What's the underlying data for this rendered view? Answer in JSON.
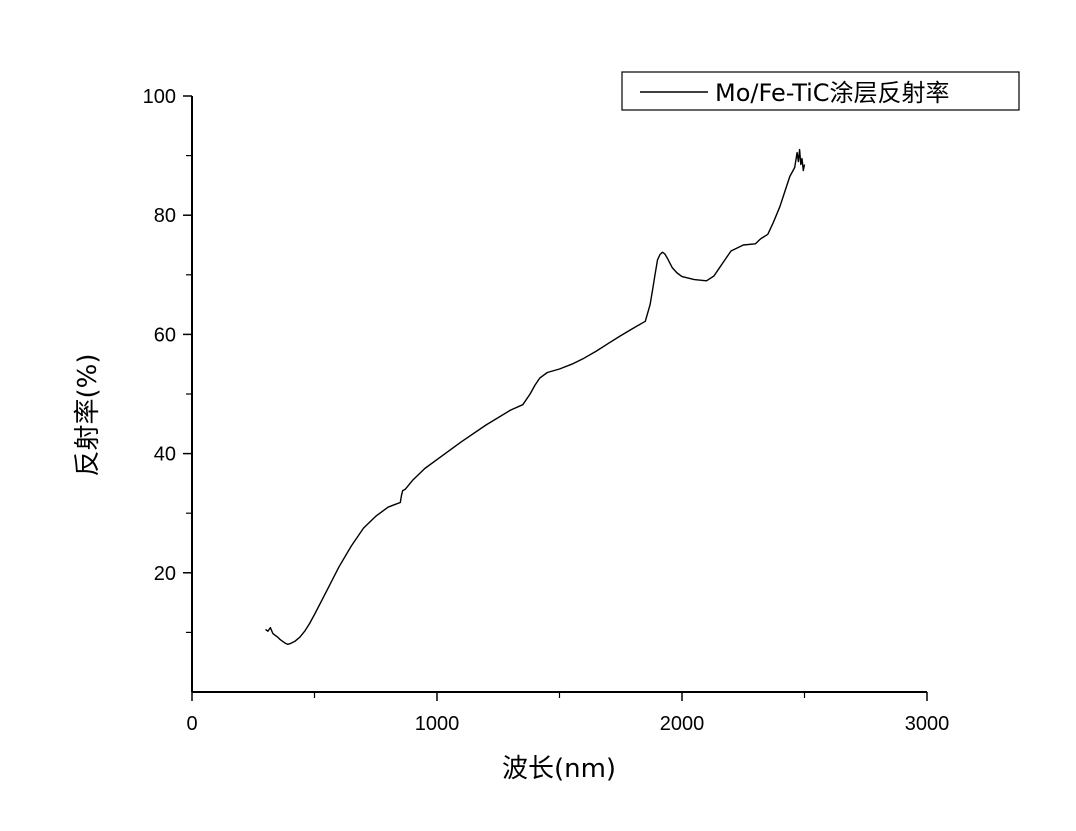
{
  "chart_data": {
    "type": "line",
    "title": "",
    "xlabel": "波长(nm)",
    "ylabel": "反射率(%)",
    "xlim": [
      0,
      3000
    ],
    "ylim": [
      0,
      100
    ],
    "x_ticks": [
      "0",
      "1000",
      "2000",
      "3000"
    ],
    "y_ticks": [
      "20",
      "40",
      "60",
      "80",
      "100"
    ],
    "grid": false,
    "legend_position": "top-right",
    "series": [
      {
        "name": "Mo/Fe-TiC涂层反射率",
        "color": "#000000",
        "x": [
          300,
          310,
          320,
          330,
          340,
          350,
          360,
          370,
          380,
          390,
          400,
          420,
          440,
          460,
          480,
          500,
          550,
          600,
          650,
          700,
          750,
          800,
          830,
          850,
          855,
          860,
          870,
          900,
          950,
          1000,
          1100,
          1200,
          1300,
          1350,
          1380,
          1400,
          1420,
          1450,
          1500,
          1550,
          1600,
          1650,
          1700,
          1750,
          1800,
          1850,
          1870,
          1880,
          1890,
          1900,
          1910,
          1920,
          1930,
          1940,
          1950,
          1960,
          1980,
          2000,
          2050,
          2100,
          2130,
          2150,
          2180,
          2200,
          2250,
          2300,
          2320,
          2350,
          2370,
          2380,
          2400,
          2420,
          2440,
          2460,
          2470,
          2475,
          2480,
          2485,
          2490,
          2495,
          2500
        ],
        "values": [
          10.5,
          10.2,
          10.8,
          9.8,
          9.5,
          9.2,
          8.8,
          8.5,
          8.2,
          8.0,
          8.1,
          8.5,
          9.2,
          10.2,
          11.5,
          13.0,
          17.0,
          21.0,
          24.5,
          27.5,
          29.5,
          31.0,
          31.5,
          31.8,
          33.0,
          33.8,
          34.0,
          35.5,
          37.5,
          39.0,
          42.0,
          44.8,
          47.3,
          48.2,
          50.0,
          51.5,
          52.7,
          53.6,
          54.2,
          55.0,
          56.0,
          57.2,
          58.5,
          59.8,
          61.0,
          62.2,
          65.0,
          67.5,
          70.0,
          72.5,
          73.4,
          73.8,
          73.5,
          72.8,
          72.0,
          71.2,
          70.3,
          69.7,
          69.2,
          69.0,
          69.8,
          71.0,
          72.8,
          74.0,
          75.0,
          75.2,
          76.0,
          76.8,
          78.5,
          79.5,
          81.5,
          84.0,
          86.5,
          88.0,
          90.5,
          89.0,
          91.0,
          88.5,
          89.5,
          87.5,
          88.5
        ]
      }
    ]
  }
}
